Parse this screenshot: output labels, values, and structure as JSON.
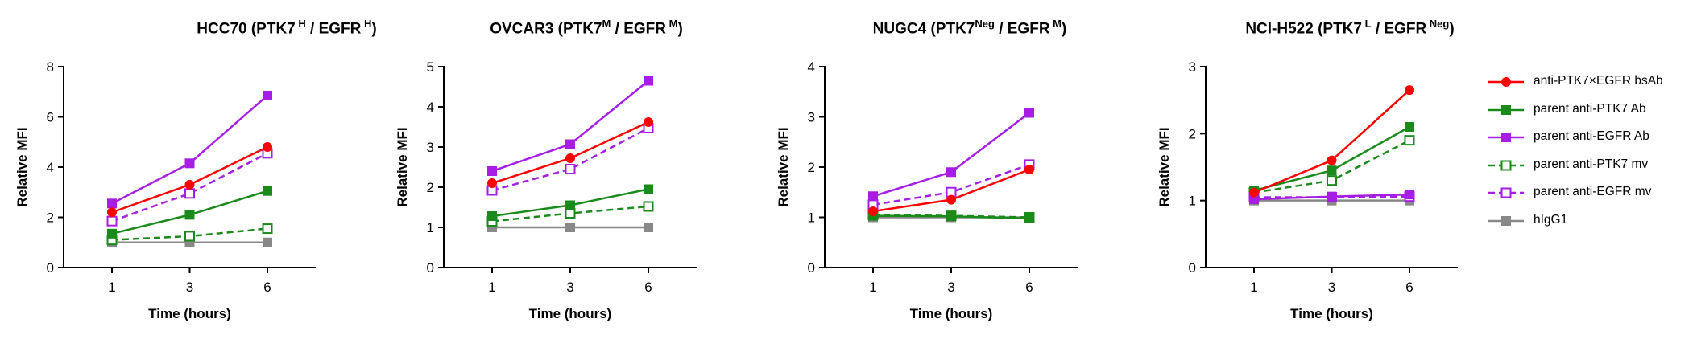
{
  "chart_data": [
    {
      "type": "line",
      "title": {
        "main": "HCC70 (PTK7",
        "s1": " H",
        "mid": " / EGFR",
        "s2": " H",
        "end": ")"
      },
      "xlabel": "Time (hours)",
      "ylabel": "Relative MFI",
      "x": [
        1,
        3,
        6
      ],
      "xticks": [
        "1",
        "3",
        "6"
      ],
      "ylim": [
        0,
        8
      ],
      "yticks": [
        "0",
        "2",
        "4",
        "6",
        "8"
      ],
      "series": [
        {
          "name": "anti-PTK7×EGFR bsAb",
          "values": [
            2.2,
            3.3,
            4.8
          ]
        },
        {
          "name": "parent anti-PTK7 Ab",
          "values": [
            1.35,
            2.1,
            3.05
          ]
        },
        {
          "name": "parent anti-EGFR Ab",
          "values": [
            2.55,
            4.15,
            6.85
          ]
        },
        {
          "name": "parent anti-PTK7 mv",
          "values": [
            1.1,
            1.25,
            1.55
          ]
        },
        {
          "name": "parent anti-EGFR mv",
          "values": [
            1.85,
            2.95,
            4.55
          ]
        },
        {
          "name": "hIgG1",
          "values": [
            1.0,
            1.0,
            1.0
          ]
        }
      ]
    },
    {
      "type": "line",
      "title": {
        "main": "OVCAR3 (PTK7",
        "s1": "M",
        "mid": " / EGFR",
        "s2": " M",
        "end": ")"
      },
      "xlabel": "Time (hours)",
      "ylabel": "Relative MFI",
      "x": [
        1,
        3,
        6
      ],
      "xticks": [
        "1",
        "3",
        "6"
      ],
      "ylim": [
        0,
        5
      ],
      "yticks": [
        "0",
        "1",
        "2",
        "3",
        "4",
        "5"
      ],
      "series": [
        {
          "name": "anti-PTK7×EGFR bsAb",
          "values": [
            2.1,
            2.72,
            3.62
          ]
        },
        {
          "name": "parent anti-PTK7 Ab",
          "values": [
            1.28,
            1.55,
            1.95
          ]
        },
        {
          "name": "parent anti-EGFR Ab",
          "values": [
            2.4,
            3.07,
            4.65
          ]
        },
        {
          "name": "parent anti-PTK7 mv",
          "values": [
            1.15,
            1.35,
            1.52
          ]
        },
        {
          "name": "parent anti-EGFR mv",
          "values": [
            1.92,
            2.45,
            3.47
          ]
        },
        {
          "name": "hIgG1",
          "values": [
            1.0,
            1.0,
            1.0
          ]
        }
      ]
    },
    {
      "type": "line",
      "title": {
        "main": "NUGC4 (PTK7",
        "s1": "Neg",
        "mid": " / EGFR",
        "s2": " M",
        "end": ")"
      },
      "xlabel": "Time (hours)",
      "ylabel": "Relative MFI",
      "x": [
        1,
        3,
        6
      ],
      "xticks": [
        "1",
        "3",
        "6"
      ],
      "ylim": [
        0,
        4
      ],
      "yticks": [
        "0",
        "1",
        "2",
        "3",
        "4"
      ],
      "series": [
        {
          "name": "anti-PTK7×EGFR bsAb",
          "values": [
            1.12,
            1.35,
            1.95
          ]
        },
        {
          "name": "parent anti-PTK7 Ab",
          "values": [
            1.03,
            1.02,
            0.98
          ]
        },
        {
          "name": "parent anti-EGFR Ab",
          "values": [
            1.42,
            1.9,
            3.08
          ]
        },
        {
          "name": "parent anti-PTK7 mv",
          "values": [
            1.05,
            1.03,
            1.0
          ]
        },
        {
          "name": "parent anti-EGFR mv",
          "values": [
            1.25,
            1.5,
            2.05
          ]
        },
        {
          "name": "hIgG1",
          "values": [
            1.0,
            1.0,
            1.0
          ]
        }
      ]
    },
    {
      "type": "line",
      "title": {
        "main": "NCI-H522 (PTK7",
        "s1": " L",
        "mid": " / EGFR",
        "s2": " Neg",
        "end": ")"
      },
      "xlabel": "Time (hours)",
      "ylabel": "Relative MFI",
      "x": [
        1,
        3,
        6
      ],
      "xticks": [
        "1",
        "3",
        "6"
      ],
      "ylim": [
        0,
        3
      ],
      "yticks": [
        "0",
        "1",
        "2",
        "3"
      ],
      "series": [
        {
          "name": "anti-PTK7×EGFR bsAb",
          "values": [
            1.12,
            1.6,
            2.65
          ]
        },
        {
          "name": "parent anti-PTK7 Ab",
          "values": [
            1.15,
            1.45,
            2.1
          ]
        },
        {
          "name": "parent anti-EGFR Ab",
          "values": [
            1.02,
            1.06,
            1.09
          ]
        },
        {
          "name": "parent anti-PTK7 mv",
          "values": [
            1.12,
            1.3,
            1.9
          ]
        },
        {
          "name": "parent anti-EGFR mv",
          "values": [
            1.05,
            1.05,
            1.06
          ]
        },
        {
          "name": "hIgG1",
          "values": [
            1.0,
            1.0,
            1.0
          ]
        }
      ]
    }
  ],
  "styles": [
    {
      "color": "#ff0000",
      "marker": "circle",
      "filled": true,
      "dashed": false
    },
    {
      "color": "#1a8a1a",
      "marker": "square",
      "filled": true,
      "dashed": false
    },
    {
      "color": "#a61ee6",
      "marker": "square",
      "filled": true,
      "dashed": false
    },
    {
      "color": "#1a8a1a",
      "marker": "square",
      "filled": false,
      "dashed": true
    },
    {
      "color": "#a61ee6",
      "marker": "square",
      "filled": false,
      "dashed": true
    },
    {
      "color": "#888888",
      "marker": "square",
      "filled": true,
      "dashed": false
    }
  ],
  "legend": {
    "position": "right",
    "items": [
      {
        "label": "anti-PTK7×EGFR bsAb"
      },
      {
        "label": "parent anti-PTK7 Ab"
      },
      {
        "label": "parent anti-EGFR Ab"
      },
      {
        "label": "parent anti-PTK7 mv"
      },
      {
        "label": "parent anti-EGFR mv"
      },
      {
        "label": "hIgG1"
      }
    ]
  }
}
